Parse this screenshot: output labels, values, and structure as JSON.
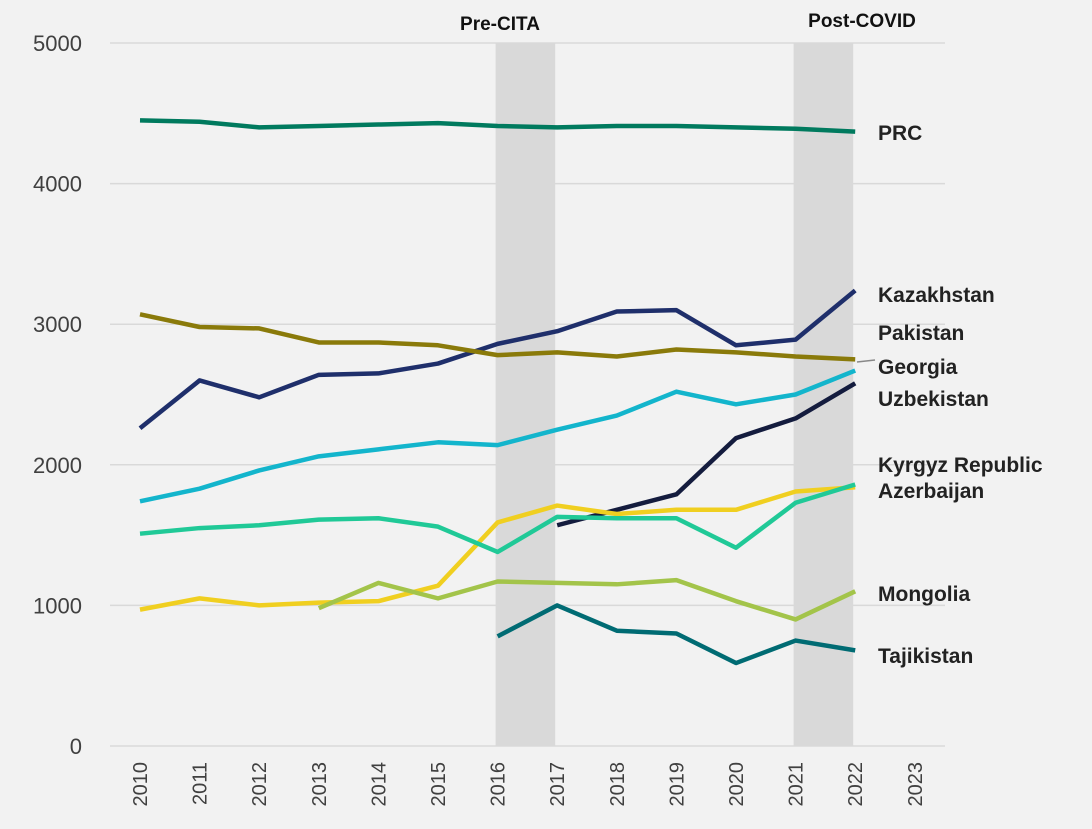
{
  "chart_data": {
    "type": "line",
    "categories": [
      "2010",
      "2011",
      "2012",
      "2013",
      "2014",
      "2015",
      "2016",
      "2017",
      "2018",
      "2019",
      "2020",
      "2021",
      "2022",
      "2023"
    ],
    "ylim": [
      0,
      5000
    ],
    "yticks": [
      0,
      1000,
      2000,
      3000,
      4000,
      5000
    ],
    "grid": true,
    "bands": [
      {
        "label": "Pre-CITA",
        "from": "2016",
        "to": "2017",
        "color": "#d9d9d9"
      },
      {
        "label": "Post-COVID",
        "from": "2021",
        "to": "2022",
        "color": "#d9d9d9"
      }
    ],
    "series": [
      {
        "name": "PRC",
        "color": "#007a5e",
        "values": [
          4450,
          4440,
          4400,
          4410,
          4420,
          4430,
          4410,
          4400,
          4410,
          4410,
          4400,
          4390,
          4370,
          null
        ]
      },
      {
        "name": "Kazakhstan",
        "color": "#1f2f6b",
        "values": [
          2260,
          2600,
          2480,
          2640,
          2650,
          2720,
          2860,
          2950,
          3090,
          3100,
          2850,
          2890,
          3240,
          null
        ]
      },
      {
        "name": "Pakistan",
        "color": "#8a7a0a",
        "values": [
          3070,
          2980,
          2970,
          2870,
          2870,
          2850,
          2780,
          2800,
          2770,
          2820,
          2800,
          2770,
          2750,
          null
        ]
      },
      {
        "name": "Georgia",
        "color": "#13b5cc",
        "values": [
          1740,
          1830,
          1960,
          2060,
          2110,
          2160,
          2140,
          2250,
          2350,
          2520,
          2430,
          2500,
          2670,
          null
        ]
      },
      {
        "name": "Uzbekistan",
        "color": "#141c3e",
        "values": [
          null,
          null,
          null,
          null,
          null,
          null,
          null,
          1570,
          1680,
          1790,
          2190,
          2330,
          2580,
          null
        ]
      },
      {
        "name": "Kyrgyz Republic",
        "color": "#f0cf20",
        "values": [
          970,
          1050,
          1000,
          1020,
          1030,
          1140,
          1590,
          1710,
          1650,
          1680,
          1680,
          1810,
          1840,
          null
        ]
      },
      {
        "name": "Azerbaijan",
        "color": "#20c997",
        "values": [
          1510,
          1550,
          1570,
          1610,
          1620,
          1560,
          1380,
          1630,
          1620,
          1620,
          1410,
          1730,
          1860,
          null
        ]
      },
      {
        "name": "Mongolia",
        "color": "#a3c44a",
        "values": [
          null,
          null,
          null,
          980,
          1160,
          1050,
          1170,
          1160,
          1150,
          1180,
          1030,
          900,
          1100,
          null
        ]
      },
      {
        "name": "Tajikistan",
        "color": "#006b73",
        "values": [
          null,
          null,
          null,
          null,
          null,
          null,
          780,
          1000,
          820,
          800,
          590,
          750,
          680,
          null
        ]
      }
    ]
  }
}
